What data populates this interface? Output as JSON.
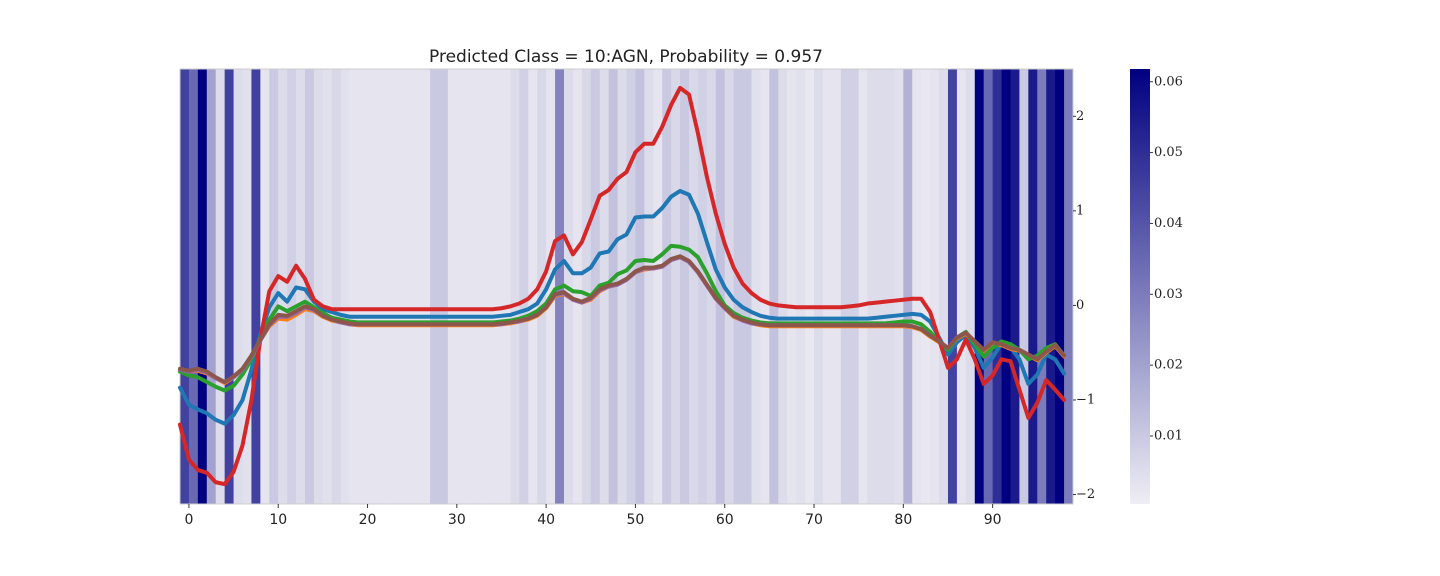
{
  "chart_data": {
    "type": "line",
    "title": "Predicted Class = 10:AGN, Probability = 0.957",
    "x": [
      -1,
      0,
      1,
      2,
      3,
      4,
      5,
      6,
      7,
      8,
      9,
      10,
      11,
      12,
      13,
      14,
      15,
      16,
      17,
      18,
      19,
      20,
      21,
      22,
      23,
      24,
      25,
      26,
      27,
      28,
      29,
      30,
      31,
      32,
      33,
      34,
      35,
      36,
      37,
      38,
      39,
      40,
      41,
      42,
      43,
      44,
      45,
      46,
      47,
      48,
      49,
      50,
      51,
      52,
      53,
      54,
      55,
      56,
      57,
      58,
      59,
      60,
      61,
      62,
      63,
      64,
      65,
      66,
      67,
      68,
      69,
      70,
      71,
      72,
      73,
      74,
      75,
      76,
      77,
      78,
      79,
      80,
      81,
      82,
      83,
      84,
      85,
      86,
      87,
      88,
      89,
      90,
      91,
      92,
      93,
      94,
      95,
      96,
      97,
      98
    ],
    "xlim": [
      -1,
      99
    ],
    "xticks": [
      0,
      10,
      20,
      30,
      40,
      50,
      60,
      70,
      80,
      90
    ],
    "ylim": [
      -2.1,
      2.5
    ],
    "yticks": [
      {
        "value": -2,
        "label": "−2"
      },
      {
        "value": -1,
        "label": "−1"
      },
      0,
      1,
      2
    ],
    "yaxis_side": "right",
    "heatmap": {
      "values": [
        0.045,
        0.035,
        0.062,
        0.02,
        0.005,
        0.045,
        0.005,
        0.004,
        0.045,
        0.003,
        0.01,
        0.005,
        0.008,
        0.005,
        0.01,
        0.005,
        0.004,
        0.006,
        0.004,
        0.003,
        0.003,
        0.003,
        0.003,
        0.003,
        0.003,
        0.003,
        0.003,
        0.003,
        0.01,
        0.01,
        0.003,
        0.003,
        0.003,
        0.003,
        0.003,
        0.003,
        0.003,
        0.005,
        0.008,
        0.003,
        0.006,
        0.003,
        0.028,
        0.005,
        0.003,
        0.006,
        0.01,
        0.005,
        0.012,
        0.005,
        0.008,
        0.012,
        0.005,
        0.003,
        0.01,
        0.006,
        0.01,
        0.006,
        0.008,
        0.006,
        0.012,
        0.006,
        0.01,
        0.01,
        0.004,
        0.003,
        0.012,
        0.005,
        0.003,
        0.004,
        0.002,
        0.005,
        0.003,
        0.003,
        0.008,
        0.008,
        0.003,
        0.005,
        0.005,
        0.005,
        0.004,
        0.016,
        0.003,
        0.002,
        0.003,
        0.005,
        0.045,
        0.003,
        0.005,
        0.062,
        0.035,
        0.05,
        0.062,
        0.055,
        0.01,
        0.055,
        0.03,
        0.055,
        0.062,
        0.03
      ],
      "colormap": [
        "#efeef4",
        "#000080"
      ],
      "clim": [
        0.0004,
        0.0618
      ],
      "cticks": [
        0.01,
        0.02,
        0.03,
        0.04,
        0.05,
        0.06
      ]
    },
    "series": [
      {
        "color": "#1f77b4",
        "values": [
          -0.87,
          -1.05,
          -1.1,
          -1.14,
          -1.21,
          -1.25,
          -1.16,
          -1.0,
          -0.68,
          -0.31,
          -0.02,
          0.13,
          0.04,
          0.19,
          0.17,
          0.04,
          -0.04,
          -0.07,
          -0.1,
          -0.12,
          -0.12,
          -0.12,
          -0.12,
          -0.12,
          -0.12,
          -0.12,
          -0.12,
          -0.12,
          -0.12,
          -0.12,
          -0.12,
          -0.12,
          -0.12,
          -0.12,
          -0.12,
          -0.12,
          -0.11,
          -0.1,
          -0.07,
          -0.04,
          0.02,
          0.17,
          0.38,
          0.47,
          0.34,
          0.34,
          0.4,
          0.55,
          0.57,
          0.7,
          0.75,
          0.93,
          0.94,
          0.94,
          1.03,
          1.15,
          1.21,
          1.17,
          0.97,
          0.67,
          0.38,
          0.19,
          0.06,
          -0.02,
          -0.07,
          -0.11,
          -0.13,
          -0.14,
          -0.14,
          -0.14,
          -0.14,
          -0.14,
          -0.14,
          -0.14,
          -0.14,
          -0.14,
          -0.14,
          -0.14,
          -0.13,
          -0.12,
          -0.11,
          -0.1,
          -0.09,
          -0.1,
          -0.17,
          -0.34,
          -0.52,
          -0.39,
          -0.31,
          -0.45,
          -0.66,
          -0.55,
          -0.4,
          -0.44,
          -0.57,
          -0.83,
          -0.73,
          -0.52,
          -0.57,
          -0.72
        ]
      },
      {
        "color": "#ff7f0e",
        "values": [
          -0.68,
          -0.7,
          -0.69,
          -0.72,
          -0.77,
          -0.82,
          -0.76,
          -0.68,
          -0.54,
          -0.37,
          -0.22,
          -0.14,
          -0.15,
          -0.1,
          -0.04,
          -0.06,
          -0.12,
          -0.16,
          -0.18,
          -0.2,
          -0.21,
          -0.21,
          -0.21,
          -0.21,
          -0.21,
          -0.21,
          -0.21,
          -0.21,
          -0.21,
          -0.21,
          -0.21,
          -0.21,
          -0.21,
          -0.21,
          -0.21,
          -0.21,
          -0.2,
          -0.19,
          -0.17,
          -0.15,
          -0.11,
          -0.03,
          0.1,
          0.12,
          0.06,
          0.03,
          0.06,
          0.15,
          0.2,
          0.22,
          0.27,
          0.35,
          0.38,
          0.39,
          0.41,
          0.48,
          0.51,
          0.46,
          0.35,
          0.21,
          0.07,
          -0.03,
          -0.12,
          -0.16,
          -0.19,
          -0.21,
          -0.22,
          -0.22,
          -0.22,
          -0.22,
          -0.22,
          -0.22,
          -0.22,
          -0.22,
          -0.22,
          -0.22,
          -0.22,
          -0.22,
          -0.22,
          -0.22,
          -0.22,
          -0.22,
          -0.23,
          -0.26,
          -0.33,
          -0.39,
          -0.46,
          -0.35,
          -0.3,
          -0.39,
          -0.48,
          -0.4,
          -0.42,
          -0.46,
          -0.48,
          -0.53,
          -0.58,
          -0.5,
          -0.43,
          -0.54
        ]
      },
      {
        "color": "#2ca02c",
        "values": [
          -0.7,
          -0.74,
          -0.76,
          -0.81,
          -0.86,
          -0.9,
          -0.85,
          -0.73,
          -0.57,
          -0.34,
          -0.15,
          -0.01,
          -0.06,
          -0.01,
          0.04,
          -0.02,
          -0.08,
          -0.13,
          -0.15,
          -0.17,
          -0.18,
          -0.18,
          -0.18,
          -0.18,
          -0.18,
          -0.18,
          -0.18,
          -0.18,
          -0.18,
          -0.18,
          -0.18,
          -0.18,
          -0.18,
          -0.18,
          -0.18,
          -0.18,
          -0.17,
          -0.16,
          -0.14,
          -0.11,
          -0.06,
          0.02,
          0.17,
          0.21,
          0.15,
          0.14,
          0.1,
          0.21,
          0.24,
          0.33,
          0.37,
          0.47,
          0.48,
          0.47,
          0.54,
          0.63,
          0.62,
          0.59,
          0.51,
          0.34,
          0.15,
          0,
          -0.08,
          -0.13,
          -0.16,
          -0.18,
          -0.19,
          -0.19,
          -0.19,
          -0.19,
          -0.19,
          -0.19,
          -0.19,
          -0.19,
          -0.19,
          -0.19,
          -0.19,
          -0.19,
          -0.19,
          -0.19,
          -0.18,
          -0.17,
          -0.17,
          -0.2,
          -0.28,
          -0.38,
          -0.47,
          -0.34,
          -0.28,
          -0.41,
          -0.54,
          -0.45,
          -0.38,
          -0.41,
          -0.47,
          -0.57,
          -0.53,
          -0.45,
          -0.41,
          -0.53
        ]
      },
      {
        "color": "#d62728",
        "values": [
          -1.26,
          -1.63,
          -1.74,
          -1.77,
          -1.87,
          -1.89,
          -1.76,
          -1.48,
          -1.0,
          -0.36,
          0.15,
          0.31,
          0.25,
          0.42,
          0.28,
          0.06,
          -0.01,
          -0.04,
          -0.04,
          -0.04,
          -0.04,
          -0.04,
          -0.04,
          -0.04,
          -0.04,
          -0.04,
          -0.04,
          -0.04,
          -0.04,
          -0.04,
          -0.04,
          -0.04,
          -0.04,
          -0.04,
          -0.04,
          -0.04,
          -0.03,
          -0.01,
          0.02,
          0.07,
          0.17,
          0.36,
          0.68,
          0.74,
          0.54,
          0.67,
          0.91,
          1.16,
          1.22,
          1.34,
          1.41,
          1.62,
          1.71,
          1.71,
          1.89,
          2.12,
          2.3,
          2.23,
          1.82,
          1.36,
          0.97,
          0.65,
          0.4,
          0.23,
          0.13,
          0.06,
          0.02,
          0,
          -0.01,
          -0.02,
          -0.02,
          -0.02,
          -0.02,
          -0.02,
          -0.02,
          -0.01,
          0,
          0.02,
          0.03,
          0.04,
          0.05,
          0.06,
          0.07,
          0.07,
          -0.07,
          -0.36,
          -0.66,
          -0.57,
          -0.36,
          -0.57,
          -0.83,
          -0.74,
          -0.57,
          -0.59,
          -0.89,
          -1.19,
          -1.03,
          -0.79,
          -0.89,
          -1.0
        ]
      },
      {
        "color": "#9467bd",
        "values": [
          -0.68,
          -0.7,
          -0.68,
          -0.71,
          -0.77,
          -0.81,
          -0.76,
          -0.68,
          -0.54,
          -0.37,
          -0.21,
          -0.12,
          -0.12,
          -0.08,
          -0.02,
          -0.05,
          -0.11,
          -0.15,
          -0.18,
          -0.2,
          -0.2,
          -0.2,
          -0.2,
          -0.2,
          -0.2,
          -0.2,
          -0.2,
          -0.2,
          -0.2,
          -0.2,
          -0.2,
          -0.2,
          -0.2,
          -0.2,
          -0.2,
          -0.2,
          -0.2,
          -0.18,
          -0.17,
          -0.14,
          -0.1,
          -0.02,
          0.11,
          0.13,
          0.06,
          0.03,
          0.07,
          0.16,
          0.2,
          0.22,
          0.27,
          0.35,
          0.39,
          0.39,
          0.41,
          0.48,
          0.51,
          0.46,
          0.35,
          0.21,
          0.07,
          -0.03,
          -0.11,
          -0.16,
          -0.19,
          -0.2,
          -0.21,
          -0.21,
          -0.21,
          -0.21,
          -0.21,
          -0.21,
          -0.21,
          -0.21,
          -0.21,
          -0.21,
          -0.21,
          -0.21,
          -0.21,
          -0.21,
          -0.21,
          -0.21,
          -0.22,
          -0.25,
          -0.32,
          -0.38,
          -0.45,
          -0.34,
          -0.29,
          -0.38,
          -0.47,
          -0.39,
          -0.41,
          -0.45,
          -0.47,
          -0.52,
          -0.57,
          -0.49,
          -0.42,
          -0.53
        ]
      },
      {
        "color": "#8c564b",
        "values": [
          -0.67,
          -0.69,
          -0.67,
          -0.7,
          -0.76,
          -0.81,
          -0.75,
          -0.67,
          -0.53,
          -0.36,
          -0.2,
          -0.1,
          -0.11,
          -0.06,
          -0.01,
          -0.04,
          -0.11,
          -0.15,
          -0.17,
          -0.19,
          -0.2,
          -0.2,
          -0.2,
          -0.2,
          -0.2,
          -0.2,
          -0.2,
          -0.2,
          -0.2,
          -0.2,
          -0.2,
          -0.2,
          -0.2,
          -0.2,
          -0.2,
          -0.2,
          -0.19,
          -0.18,
          -0.16,
          -0.14,
          -0.1,
          -0.02,
          0.12,
          0.14,
          0.07,
          0.04,
          0.08,
          0.17,
          0.21,
          0.23,
          0.28,
          0.36,
          0.4,
          0.4,
          0.42,
          0.49,
          0.52,
          0.47,
          0.36,
          0.22,
          0.08,
          -0.02,
          -0.11,
          -0.15,
          -0.18,
          -0.2,
          -0.21,
          -0.21,
          -0.21,
          -0.21,
          -0.21,
          -0.21,
          -0.21,
          -0.21,
          -0.21,
          -0.21,
          -0.21,
          -0.21,
          -0.21,
          -0.21,
          -0.21,
          -0.21,
          -0.22,
          -0.25,
          -0.32,
          -0.38,
          -0.45,
          -0.34,
          -0.29,
          -0.38,
          -0.47,
          -0.39,
          -0.41,
          -0.45,
          -0.47,
          -0.52,
          -0.57,
          -0.49,
          -0.42,
          -0.53
        ]
      }
    ]
  }
}
